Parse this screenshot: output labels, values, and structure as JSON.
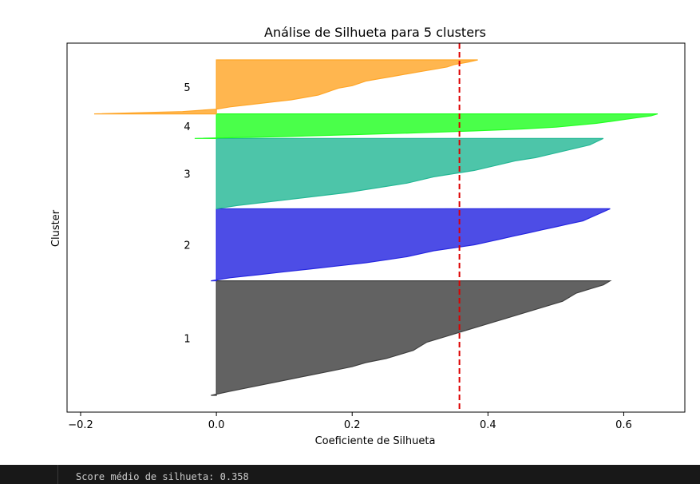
{
  "chart_data": {
    "type": "area",
    "title": "Análise de Silhueta para 5 clusters",
    "xlabel": "Coeficiente de Silhueta",
    "ylabel": "Cluster",
    "xlim": [
      -0.22,
      0.69
    ],
    "x_ticks": [
      "−0.2",
      "0.0",
      "0.2",
      "0.4",
      "0.6"
    ],
    "x_tick_values": [
      -0.2,
      0.0,
      0.2,
      0.4,
      0.6
    ],
    "grid": false,
    "average_silhouette": 0.358,
    "average_line_color": "#dd0000",
    "clusters": [
      {
        "label": "1",
        "color": "#404040",
        "size": 140,
        "values": [
          -0.008,
          0.02,
          0.05,
          0.08,
          0.11,
          0.14,
          0.17,
          0.2,
          0.22,
          0.25,
          0.27,
          0.29,
          0.3,
          0.31,
          0.33,
          0.35,
          0.37,
          0.39,
          0.41,
          0.43,
          0.45,
          0.47,
          0.49,
          0.51,
          0.52,
          0.53,
          0.55,
          0.57,
          0.58
        ]
      },
      {
        "label": "2",
        "color": "#2626e0",
        "size": 88,
        "values": [
          -0.008,
          0.02,
          0.06,
          0.1,
          0.14,
          0.18,
          0.22,
          0.25,
          0.28,
          0.3,
          0.32,
          0.35,
          0.38,
          0.4,
          0.42,
          0.44,
          0.46,
          0.48,
          0.5,
          0.52,
          0.54,
          0.55,
          0.56,
          0.57,
          0.58
        ]
      },
      {
        "label": "3",
        "color": "#26b896",
        "size": 86,
        "values": [
          0.0,
          0.03,
          0.07,
          0.11,
          0.15,
          0.19,
          0.22,
          0.25,
          0.28,
          0.3,
          0.32,
          0.35,
          0.38,
          0.4,
          0.42,
          0.44,
          0.47,
          0.49,
          0.51,
          0.53,
          0.55,
          0.56,
          0.57
        ]
      },
      {
        "label": "4",
        "color": "#22ff22",
        "size": 30,
        "values": [
          -0.032,
          0.1,
          0.2,
          0.3,
          0.38,
          0.45,
          0.5,
          0.53,
          0.56,
          0.58,
          0.6,
          0.62,
          0.64,
          0.65
        ]
      },
      {
        "label": "5",
        "color": "#ffa628",
        "size": 66,
        "values": [
          -0.18,
          -0.05,
          0.0,
          0.02,
          0.05,
          0.08,
          0.11,
          0.13,
          0.15,
          0.16,
          0.17,
          0.18,
          0.2,
          0.21,
          0.22,
          0.24,
          0.26,
          0.28,
          0.3,
          0.32,
          0.34,
          0.35,
          0.37,
          0.385
        ]
      }
    ]
  },
  "output": {
    "text": "Score médio de silhueta: 0.358"
  }
}
